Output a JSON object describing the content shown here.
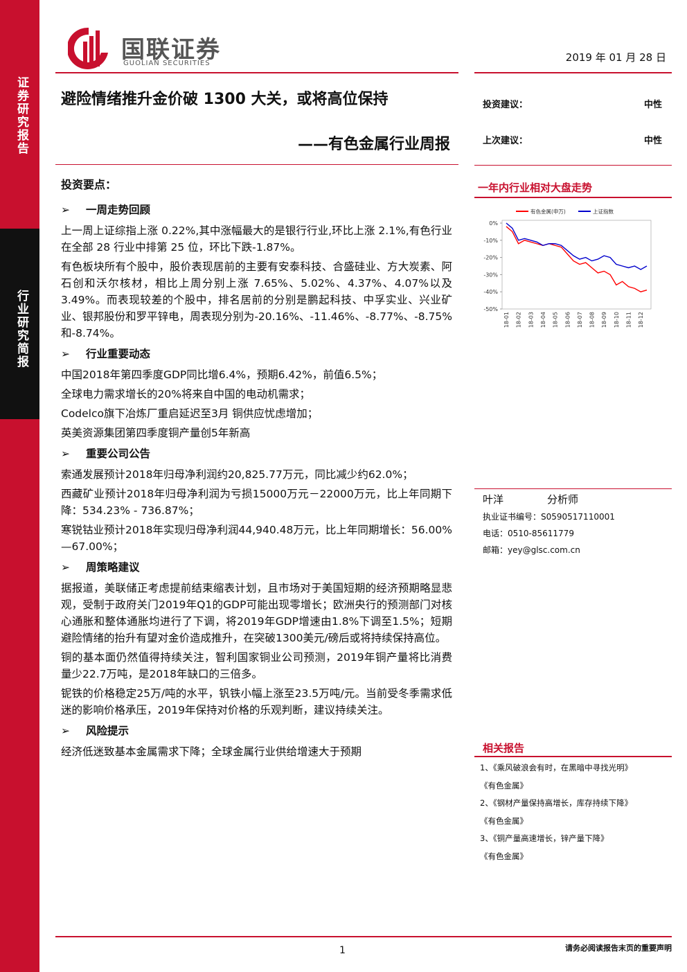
{
  "header": {
    "logo_cn": "国联证券",
    "logo_en": "GUOLIAN SECURITIES",
    "date": "2019 年 01 月 28 日"
  },
  "sidebar": {
    "top": "证券研究报告",
    "middle": "行业研究简报"
  },
  "title": "避险情绪推升金价破 1300 大关，或将高位保持",
  "subtitle": "——有色金属行业周报",
  "ratings": [
    {
      "label": "投资建议：",
      "value": "中性"
    },
    {
      "label": "上次建议：",
      "value": "中性"
    }
  ],
  "chart_heading": "一年内行业相对大盘走势",
  "key_points_title": "投资要点：",
  "sections": [
    {
      "heading": "一周走势回顾",
      "paragraphs": [
        "上一周上证综指上涨 0.22%,其中涨幅最大的是银行行业,环比上涨 2.1%,有色行业在全部 28 行业中排第 25 位，环比下跌-1.87%。",
        "有色板块所有个股中，股价表现居前的主要有安泰科技、合盛硅业、方大炭素、阿石创和沃尔核材，相比上周分别上涨 7.65%、5.02%、4.37%、4.07%以及 3.49%。而表现较差的个股中，排名居前的分别是鹏起科技、中孚实业、兴业矿业、银邦股份和罗平锌电，周表现分别为-20.16%、-11.46%、-8.77%、-8.75%和-8.74%。"
      ]
    },
    {
      "heading": "行业重要动态",
      "paragraphs": [
        "中国2018年第四季度GDP同比增6.4%，预期6.42%，前值6.5%；",
        "全球电力需求增长的20%将来自中国的电动机需求；",
        "Codelco旗下冶炼厂重启延迟至3月  铜供应忧虑增加；",
        "英美资源集团第四季度铜产量创5年新高"
      ]
    },
    {
      "heading": "重要公司公告",
      "paragraphs": [
        "索通发展预计2018年归母净利润约20,825.77万元，同比减少约62.0%；",
        "西藏矿业预计2018年归母净利润为亏损15000万元－22000万元，比上年同期下降：534.23% - 736.87%；",
        "寒锐钴业预计2018年实现归母净利润44,940.48万元，比上年同期增长：56.00%—67.00%；"
      ]
    },
    {
      "heading": "周策略建议",
      "paragraphs": [
        "据报道，美联储正考虑提前结束缩表计划，且市场对于美国短期的经济预期略显悲观，受制于政府关门2019年Q1的GDP可能出现零增长；欧洲央行的预测部门对核心通胀和整体通胀均进行了下调，将2019年GDP增速由1.8%下调至1.5%；短期避险情绪的抬升有望对金价造成推升，在突破1300美元/磅后或将持续保持高位。",
        "铜的基本面仍然值得持续关注，智利国家铜业公司预测，2019年铜产量将比消费量少22.7万吨，是2018年缺口的三倍多。",
        "铌铁的价格稳定25万/吨的水平，钒铁小幅上涨至23.5万吨/元。当前受冬季需求低迷的影响价格承压，2019年保持对价格的乐观判断，建议持续关注。"
      ]
    },
    {
      "heading": "风险提示",
      "paragraphs": [
        "经济低迷致基本金属需求下降；全球金属行业供给增速大于预期"
      ]
    }
  ],
  "analyst": {
    "name": "叶洋",
    "role": "分析师",
    "lines": [
      "执业证书编号：S0590517110001",
      "电话：0510-85611779",
      "邮箱：yey@glsc.com.cn"
    ]
  },
  "related": {
    "title": "相关报告",
    "items": [
      "1、《乘风破浪会有时，在黑暗中寻找光明》",
      "《有色金属》",
      "2、《钢材产量保持高增长，库存持续下降》",
      "《有色金属》",
      "3、《铜产量高速增长，锌产量下降》",
      "《有色金属》"
    ]
  },
  "footer": {
    "page": "1",
    "disclaimer": "请务必阅读报告末页的重要声明"
  },
  "chart_data": {
    "type": "line",
    "categories": [
      "18-01",
      null,
      "18-02",
      null,
      "18-03",
      null,
      "18-04",
      null,
      "18-05",
      null,
      "18-06",
      null,
      "18-07",
      null,
      "18-08",
      null,
      "18-09",
      null,
      "18-10",
      null,
      "18-11",
      null,
      "18-12",
      null
    ],
    "series": [
      {
        "name": "有色金属(申万)",
        "color": "#ff0000",
        "values": [
          -2,
          -5,
          -12,
          -10,
          -11,
          -12,
          -13,
          -12,
          -13,
          -14,
          -18,
          -22,
          -24,
          -23,
          -26,
          -29,
          -28,
          -30,
          -36,
          -34,
          -37,
          -38,
          -40,
          -39
        ]
      },
      {
        "name": "上证指数",
        "color": "#0000cc",
        "values": [
          0,
          -3,
          -10,
          -9,
          -10,
          -11,
          -13,
          -12,
          -12,
          -13,
          -16,
          -19,
          -21,
          -20,
          -22,
          -21,
          -19,
          -20,
          -24,
          -25,
          -26,
          -25,
          -27,
          -25
        ]
      }
    ],
    "ylim": [
      -50,
      0
    ],
    "yticks": [
      {
        "value": 0,
        "label": "0%"
      },
      {
        "value": -10,
        "label": "-10%"
      },
      {
        "value": -20,
        "label": "-20%"
      },
      {
        "value": -30,
        "label": "-30%"
      },
      {
        "value": -40,
        "label": "-40%"
      },
      {
        "value": -50,
        "label": "-50%"
      }
    ]
  }
}
